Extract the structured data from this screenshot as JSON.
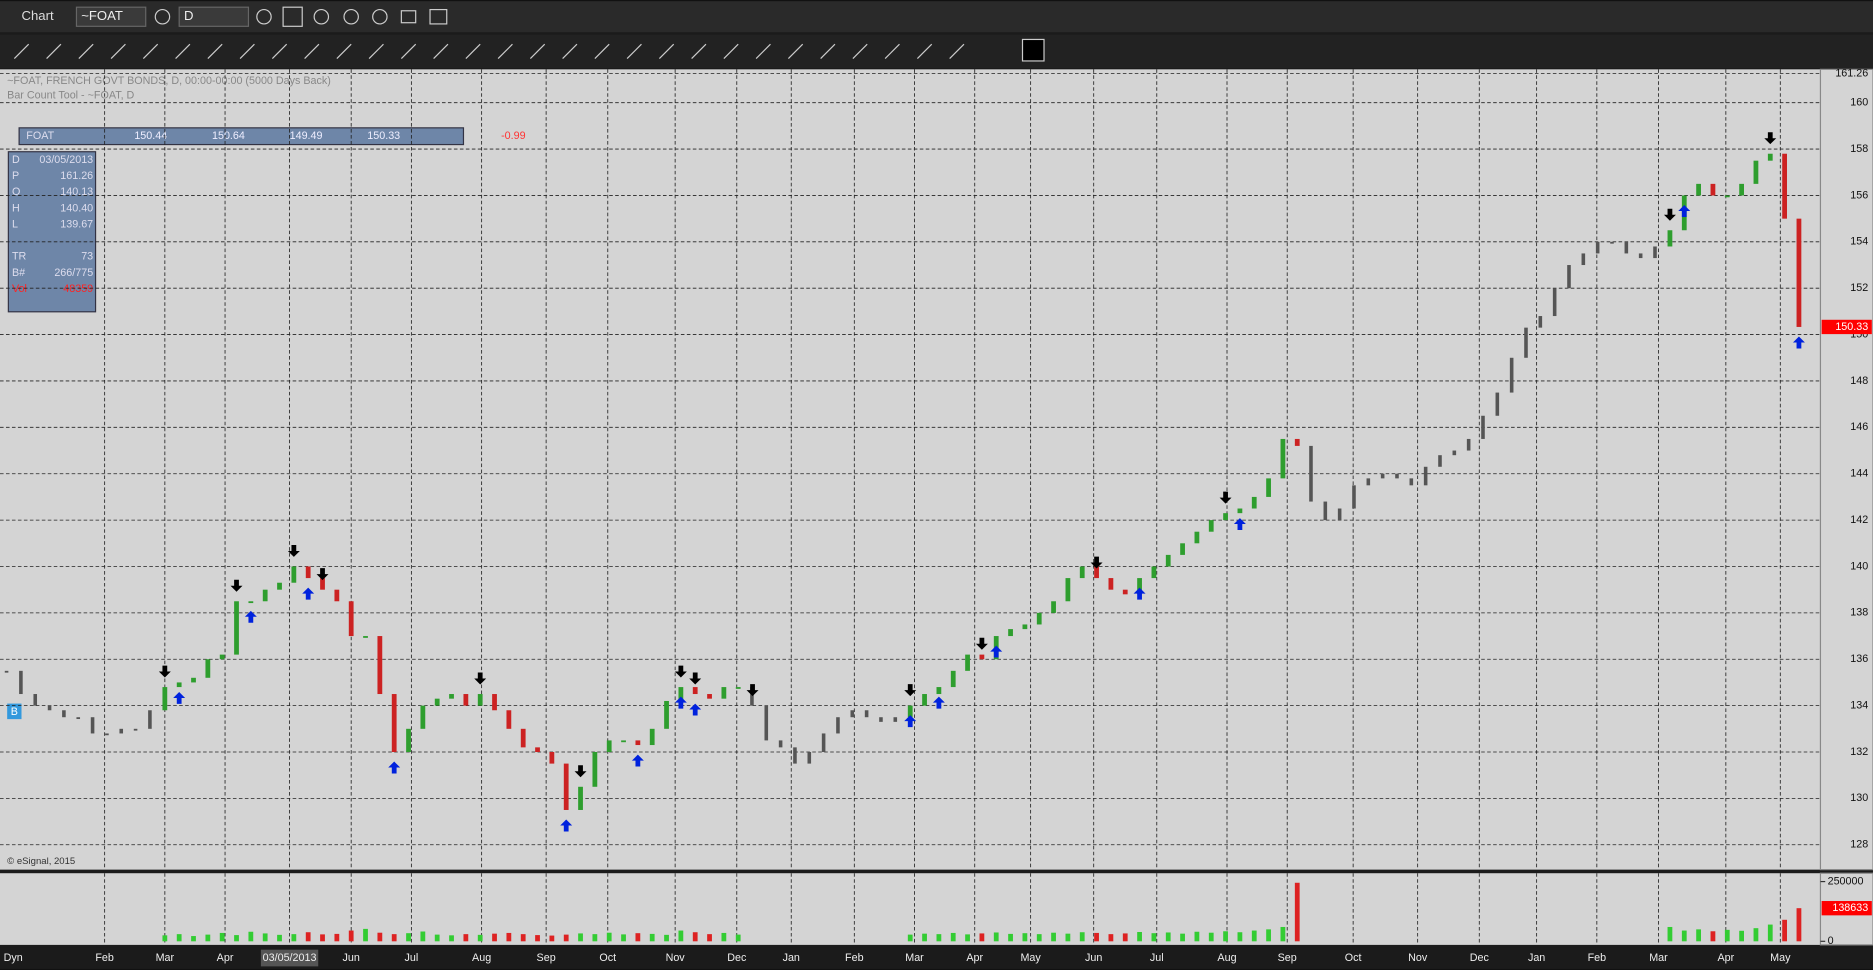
{
  "window_title": "Chart",
  "symbol_box": "~FOAT",
  "interval_box": "D",
  "dyn_label": "Dyn",
  "chart_header": "~FOAT, FRENCH GOVT BONDS, D, 00:00-00:00 (5000 Days Back)",
  "study_header": "Bar Count Tool - ~FOAT, D",
  "copyright": "© eSignal, 2015",
  "data_window": {
    "symbol": "FOAT",
    "values": [
      150.44,
      150.64,
      149.49,
      150.33,
      -0.99
    ]
  },
  "cursor_panel": [
    [
      "D",
      "03/05/2013"
    ],
    [
      "P",
      "161.26"
    ],
    [
      "O",
      "140.13"
    ],
    [
      "H",
      "140.40"
    ],
    [
      "L",
      "139.67"
    ],
    [
      "TR",
      "73"
    ],
    [
      "B#",
      "266/775"
    ],
    [
      "Vol",
      "48359"
    ]
  ],
  "b_badge": "B",
  "chart_data": [
    {
      "type": "bar",
      "ylim": [
        127.7,
        161.26
      ],
      "yticks": [
        128,
        130,
        132,
        134,
        136,
        138,
        140,
        142,
        144,
        146,
        148,
        150,
        152,
        154,
        156,
        158,
        160,
        161.26
      ],
      "xlim": [
        0,
        126
      ],
      "xticks": [
        {
          "value": 6.8,
          "label": "Feb"
        },
        {
          "value": 11,
          "label": "Mar"
        },
        {
          "value": 15.2,
          "label": "Apr"
        },
        {
          "value": 19.7,
          "label": "03/05/2013"
        },
        {
          "value": 24,
          "label": "Jun"
        },
        {
          "value": 28.2,
          "label": "Jul"
        },
        {
          "value": 33.1,
          "label": "Aug"
        },
        {
          "value": 37.6,
          "label": "Sep"
        },
        {
          "value": 41.9,
          "label": "Oct"
        },
        {
          "value": 46.6,
          "label": "Nov"
        },
        {
          "value": 50.9,
          "label": "Dec"
        },
        {
          "value": 54.7,
          "label": "Jan"
        },
        {
          "value": 59.1,
          "label": "Feb"
        },
        {
          "value": 63.3,
          "label": "Mar"
        },
        {
          "value": 67.5,
          "label": "Apr"
        },
        {
          "value": 71.4,
          "label": "May"
        },
        {
          "value": 75.8,
          "label": "Jun"
        },
        {
          "value": 80.2,
          "label": "Jul"
        },
        {
          "value": 85.1,
          "label": "Aug"
        },
        {
          "value": 89.3,
          "label": "Sep"
        },
        {
          "value": 93.9,
          "label": "Oct"
        },
        {
          "value": 98.4,
          "label": "Nov"
        },
        {
          "value": 102.7,
          "label": "Dec"
        },
        {
          "value": 106.7,
          "label": "Jan"
        },
        {
          "value": 110.9,
          "label": "Feb"
        },
        {
          "value": 115.2,
          "label": "Mar"
        },
        {
          "value": 119.9,
          "label": "Apr"
        },
        {
          "value": 123.7,
          "label": "May"
        }
      ],
      "grid": true,
      "up_color": "#2e9e2e",
      "down_color": "#cc2222",
      "last_label_color": "#ff0000",
      "values": [
        135.5,
        134.5,
        134,
        133.8,
        133.5,
        133.5,
        132.8,
        132.8,
        133,
        133,
        133.8,
        134.8,
        135,
        135.2,
        136,
        136.2,
        138.5,
        138.5,
        139,
        139.3,
        140,
        139.5,
        139,
        138.5,
        137,
        137,
        134.5,
        132,
        133,
        134,
        134.3,
        134.5,
        134,
        134.5,
        133.8,
        133,
        132.2,
        132,
        131.5,
        129.5,
        130.5,
        132,
        132.5,
        132.5,
        132.3,
        133,
        134.2,
        134.8,
        134.5,
        134.3,
        134.8,
        134.8,
        134,
        132.5,
        132.2,
        131.5,
        132,
        132.8,
        133.5,
        133.8,
        133.5,
        133.3,
        133.5,
        134,
        134.5,
        134.8,
        135.5,
        136.2,
        136,
        137,
        137.3,
        137.5,
        138,
        138.5,
        139.5,
        140,
        139.5,
        139,
        138.8,
        139.5,
        140,
        140.5,
        141,
        141.5,
        142,
        142.3,
        142.5,
        143,
        143.8,
        145.5,
        145.2,
        142.8,
        142,
        142.5,
        143.5,
        143.8,
        144,
        143.8,
        143.5,
        144.3,
        144.8,
        145,
        145.5,
        146.5,
        147.5,
        149,
        150.3,
        150.8,
        152,
        153,
        153.5,
        154,
        154,
        153.5,
        153.3,
        153.8,
        154.5,
        156,
        156.5,
        156,
        156,
        156.5,
        157.5,
        157.8,
        155,
        150.33
      ],
      "down_arrows": [
        11,
        16,
        20,
        22,
        33,
        40,
        47,
        48,
        52,
        63,
        68,
        76,
        85,
        116,
        123
      ],
      "up_arrows": [
        12,
        17,
        21,
        27,
        39,
        44,
        47,
        48,
        63,
        65,
        69,
        79,
        86,
        117,
        125
      ]
    },
    {
      "type": "volume",
      "ylim": [
        0,
        250000
      ],
      "yticks": [
        0,
        250000
      ],
      "color": "#33cc33",
      "down_color": "#dd2222",
      "last_label_color": "#ff0000",
      "values": [
        null,
        null,
        null,
        null,
        null,
        null,
        null,
        null,
        null,
        null,
        null,
        25000,
        30000,
        22000,
        28000,
        35000,
        26000,
        40000,
        33000,
        27000,
        30000,
        38000,
        29000,
        31000,
        45000,
        52000,
        36000,
        30000,
        34000,
        41000,
        28000,
        25000,
        30000,
        27000,
        32000,
        35000,
        30000,
        26000,
        24000,
        28000,
        33000,
        30000,
        36000,
        29000,
        34000,
        31000,
        27000,
        45000,
        38000,
        30000,
        35000,
        28000,
        null,
        null,
        null,
        null,
        null,
        null,
        null,
        null,
        null,
        null,
        null,
        28000,
        32000,
        30000,
        35000,
        29000,
        33000,
        37000,
        31000,
        34000,
        30000,
        36000,
        32000,
        38000,
        35000,
        30000,
        33000,
        39000,
        34000,
        37000,
        32000,
        40000,
        36000,
        42000,
        38000,
        45000,
        50000,
        60000,
        245000,
        null,
        null,
        null,
        null,
        null,
        null,
        null,
        null,
        null,
        null,
        null,
        null,
        null,
        null,
        null,
        null,
        null,
        null,
        null,
        null,
        null,
        null,
        null,
        null,
        null,
        60000,
        45000,
        50000,
        42000,
        48000,
        44000,
        55000,
        70000,
        90000,
        138633
      ]
    }
  ]
}
